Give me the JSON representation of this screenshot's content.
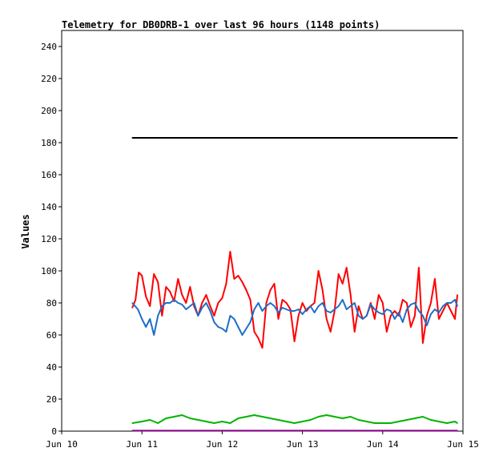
{
  "chart_data": {
    "type": "line",
    "title": "Telemetry for DB0DRB-1 over last 96 hours (1148 points)",
    "xlabel": "",
    "ylabel": "Values",
    "ylim": [
      0,
      250
    ],
    "y_ticks": [
      "0",
      "20",
      "40",
      "60",
      "80",
      "100",
      "120",
      "140",
      "160",
      "180",
      "200",
      "220",
      "240"
    ],
    "x_ticks": [
      "Jun 10",
      "Jun 11",
      "Jun 12",
      "Jun 13",
      "Jun 14",
      "Jun 15"
    ],
    "xlim": [
      0,
      5
    ],
    "grid": false,
    "legend": "none",
    "series": [
      {
        "color": "#000000",
        "x": [
          0.88,
          1.0,
          1.2,
          1.4,
          1.6,
          1.8,
          2.0,
          2.2,
          2.4,
          2.6,
          2.8,
          3.0,
          3.2,
          3.4,
          3.6,
          3.8,
          4.0,
          4.2,
          4.4,
          4.6,
          4.8,
          4.93
        ],
        "values": [
          183,
          183,
          183,
          183,
          183,
          183,
          183,
          183,
          183,
          183,
          183,
          183,
          183,
          183,
          183,
          183,
          183,
          183,
          183,
          183,
          183,
          183
        ]
      },
      {
        "color": "#ff0000",
        "x": [
          0.88,
          0.92,
          0.96,
          1.0,
          1.05,
          1.1,
          1.15,
          1.2,
          1.25,
          1.3,
          1.35,
          1.4,
          1.45,
          1.5,
          1.55,
          1.6,
          1.65,
          1.7,
          1.75,
          1.8,
          1.85,
          1.9,
          1.95,
          2.0,
          2.05,
          2.1,
          2.15,
          2.2,
          2.25,
          2.3,
          2.35,
          2.4,
          2.45,
          2.5,
          2.55,
          2.6,
          2.65,
          2.7,
          2.75,
          2.8,
          2.85,
          2.9,
          2.95,
          3.0,
          3.05,
          3.1,
          3.15,
          3.2,
          3.25,
          3.3,
          3.35,
          3.4,
          3.45,
          3.5,
          3.55,
          3.6,
          3.65,
          3.7,
          3.75,
          3.8,
          3.85,
          3.9,
          3.95,
          4.0,
          4.05,
          4.1,
          4.15,
          4.2,
          4.25,
          4.3,
          4.35,
          4.4,
          4.45,
          4.5,
          4.55,
          4.6,
          4.65,
          4.7,
          4.75,
          4.8,
          4.85,
          4.9,
          4.93
        ],
        "values": [
          77,
          82,
          99,
          97,
          84,
          78,
          98,
          93,
          72,
          90,
          87,
          81,
          95,
          85,
          80,
          90,
          78,
          72,
          80,
          85,
          78,
          72,
          80,
          83,
          92,
          112,
          95,
          97,
          93,
          88,
          82,
          62,
          58,
          52,
          80,
          88,
          92,
          70,
          82,
          80,
          76,
          56,
          72,
          80,
          75,
          78,
          80,
          100,
          88,
          70,
          62,
          75,
          98,
          92,
          102,
          85,
          62,
          78,
          70,
          72,
          80,
          70,
          85,
          80,
          62,
          72,
          75,
          72,
          82,
          80,
          65,
          72,
          102,
          55,
          72,
          80,
          95,
          70,
          75,
          80,
          75,
          70,
          85
        ]
      },
      {
        "color": "#1e6ec8",
        "x": [
          0.88,
          0.95,
          1.0,
          1.05,
          1.1,
          1.15,
          1.2,
          1.25,
          1.3,
          1.35,
          1.4,
          1.45,
          1.5,
          1.55,
          1.6,
          1.65,
          1.7,
          1.75,
          1.8,
          1.85,
          1.9,
          1.95,
          2.0,
          2.05,
          2.1,
          2.15,
          2.2,
          2.25,
          2.3,
          2.35,
          2.4,
          2.45,
          2.5,
          2.55,
          2.6,
          2.65,
          2.7,
          2.75,
          2.8,
          2.85,
          2.9,
          2.95,
          3.0,
          3.05,
          3.1,
          3.15,
          3.2,
          3.25,
          3.3,
          3.35,
          3.4,
          3.45,
          3.5,
          3.55,
          3.6,
          3.65,
          3.7,
          3.75,
          3.8,
          3.85,
          3.9,
          3.95,
          4.0,
          4.05,
          4.1,
          4.15,
          4.2,
          4.25,
          4.3,
          4.35,
          4.4,
          4.45,
          4.5,
          4.55,
          4.6,
          4.65,
          4.7,
          4.75,
          4.8,
          4.85,
          4.9,
          4.93
        ],
        "values": [
          80,
          76,
          70,
          65,
          70,
          60,
          72,
          78,
          80,
          80,
          82,
          80,
          79,
          76,
          78,
          80,
          72,
          77,
          80,
          75,
          68,
          65,
          64,
          62,
          72,
          70,
          65,
          60,
          64,
          68,
          76,
          80,
          75,
          78,
          80,
          78,
          74,
          77,
          76,
          75,
          75,
          76,
          73,
          76,
          78,
          74,
          78,
          80,
          75,
          74,
          76,
          78,
          82,
          76,
          78,
          80,
          72,
          70,
          72,
          79,
          76,
          74,
          73,
          76,
          75,
          70,
          74,
          68,
          76,
          79,
          80,
          75,
          72,
          66,
          73,
          76,
          74,
          78,
          80,
          80,
          82,
          78
        ]
      },
      {
        "color": "#00b400",
        "x": [
          0.88,
          1.0,
          1.1,
          1.2,
          1.3,
          1.4,
          1.5,
          1.6,
          1.7,
          1.8,
          1.9,
          2.0,
          2.1,
          2.2,
          2.3,
          2.4,
          2.5,
          2.6,
          2.7,
          2.8,
          2.9,
          3.0,
          3.1,
          3.2,
          3.3,
          3.4,
          3.5,
          3.6,
          3.7,
          3.8,
          3.9,
          4.0,
          4.1,
          4.2,
          4.3,
          4.4,
          4.5,
          4.6,
          4.7,
          4.8,
          4.9,
          4.93
        ],
        "values": [
          5,
          6,
          7,
          5,
          8,
          9,
          10,
          8,
          7,
          6,
          5,
          6,
          5,
          8,
          9,
          10,
          9,
          8,
          7,
          6,
          5,
          6,
          7,
          9,
          10,
          9,
          8,
          9,
          7,
          6,
          5,
          5,
          5,
          6,
          7,
          8,
          9,
          7,
          6,
          5,
          6,
          5
        ]
      },
      {
        "color": "#8c008c",
        "x": [
          0.88,
          4.93
        ],
        "values": [
          0.3,
          0.3
        ]
      }
    ]
  }
}
